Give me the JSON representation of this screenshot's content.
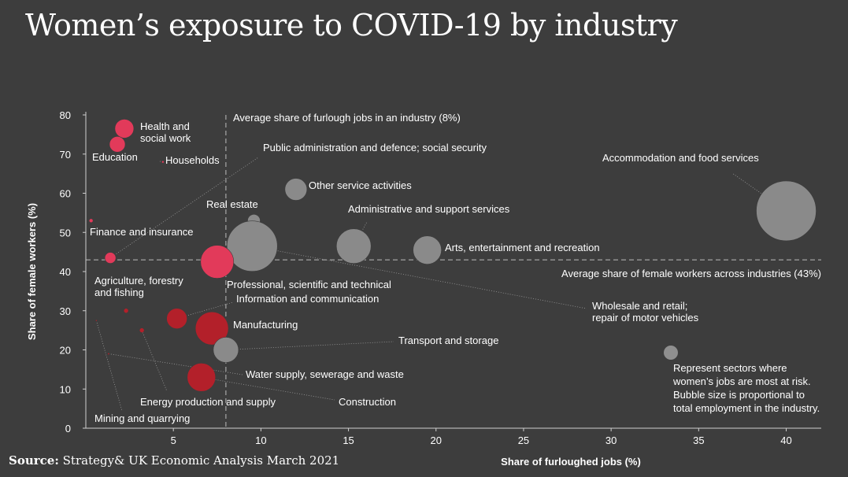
{
  "title": "Women’s exposure to COVID-19 by industry",
  "source_label": "Source:",
  "source_text": "Strategy& UK Economic Analysis  March 2021",
  "colors": {
    "background": "#3d3d3d",
    "at_risk_pink": "#e23a5a",
    "at_risk_dark": "#b3202a",
    "other_grey": "#8a8a8a",
    "legend_grey": "#8f8f8f"
  },
  "chart_data": {
    "type": "scatter",
    "xlabel": "Share of furloughed jobs (%)",
    "ylabel": "Share of female workers (%)",
    "xlim": [
      0,
      42
    ],
    "ylim": [
      0,
      80
    ],
    "xticks": [
      5,
      10,
      15,
      20,
      25,
      30,
      35,
      40
    ],
    "yticks": [
      0,
      10,
      20,
      30,
      40,
      50,
      60,
      70,
      80
    ],
    "avg_x_label": "Average share of furlough jobs in an industry (8%)",
    "avg_x": 8,
    "avg_y_label": "Average share of female workers across industries (43%)",
    "avg_y": 43,
    "legend_text": [
      "Represent sectors where",
      "women’s jobs are most at risk.",
      "Bubble size is proportional to",
      "total employment in the industry."
    ],
    "points": [
      {
        "label": [
          "Health and",
          "social work"
        ],
        "x": 2.2,
        "y": 76.5,
        "r": 12,
        "color": "#e23a5a"
      },
      {
        "label": [
          "Education"
        ],
        "x": 1.8,
        "y": 72.5,
        "r": 10,
        "color": "#e23a5a"
      },
      {
        "label": [
          "Households"
        ],
        "x": 4.4,
        "y": 68,
        "r": 1.5,
        "color": "#e23a5a"
      },
      {
        "label": [
          "Finance and insurance"
        ],
        "x": 0.3,
        "y": 53,
        "r": 2.5,
        "color": "#e23a5a"
      },
      {
        "label": [
          "Public administration and defence; social security"
        ],
        "x": 1.4,
        "y": 43.5,
        "r": 7,
        "color": "#e23a5a"
      },
      {
        "label": [
          "Real estate"
        ],
        "x": 9.6,
        "y": 53,
        "r": 8,
        "color": "#8a8a8a"
      },
      {
        "label": [
          "Other service activities"
        ],
        "x": 12,
        "y": 61,
        "r": 14,
        "color": "#8a8a8a"
      },
      {
        "label": [
          "Administrative and support services"
        ],
        "x": 15.3,
        "y": 46.5,
        "r": 22,
        "color": "#8a8a8a"
      },
      {
        "label": [
          "Arts, entertainment and recreation"
        ],
        "x": 19.5,
        "y": 45.5,
        "r": 18,
        "color": "#8a8a8a"
      },
      {
        "label": [
          "Accommodation and food services"
        ],
        "x": 40,
        "y": 55.5,
        "r": 38,
        "color": "#8a8a8a"
      },
      {
        "label": [
          "Wholesale and retail;",
          "repair of motor vehicles"
        ],
        "x": 9.5,
        "y": 46.5,
        "r": 32,
        "color": "#8a8a8a"
      },
      {
        "label": [
          "Professional, scientific and technical"
        ],
        "x": 7.5,
        "y": 42.5,
        "r": 21,
        "color": "#e23a5a"
      },
      {
        "label": [
          "Agriculture, forestry",
          "and fishing"
        ],
        "x": 2.3,
        "y": 30,
        "r": 3,
        "color": "#b3202a"
      },
      {
        "label": [
          "Information and communication"
        ],
        "x": 5.2,
        "y": 28,
        "r": 13,
        "color": "#b3202a"
      },
      {
        "label": [
          "Manufacturing"
        ],
        "x": 7.2,
        "y": 25.5,
        "r": 21,
        "color": "#b3202a"
      },
      {
        "label": [
          "Mining and quarrying"
        ],
        "x": 0.6,
        "y": 27.5,
        "r": 1,
        "color": "#b3202a"
      },
      {
        "label": [
          "Energy production and supply"
        ],
        "x": 3.2,
        "y": 25,
        "r": 3,
        "color": "#b3202a"
      },
      {
        "label": [
          "Transport and storage"
        ],
        "x": 8,
        "y": 20,
        "r": 16,
        "color": "#8a8a8a"
      },
      {
        "label": [
          "Water supply, sewerage and waste"
        ],
        "x": 1.3,
        "y": 19,
        "r": 1.2,
        "color": "#b3202a"
      },
      {
        "label": [
          "Construction"
        ],
        "x": 6.6,
        "y": 13,
        "r": 18,
        "color": "#b3202a"
      }
    ]
  }
}
